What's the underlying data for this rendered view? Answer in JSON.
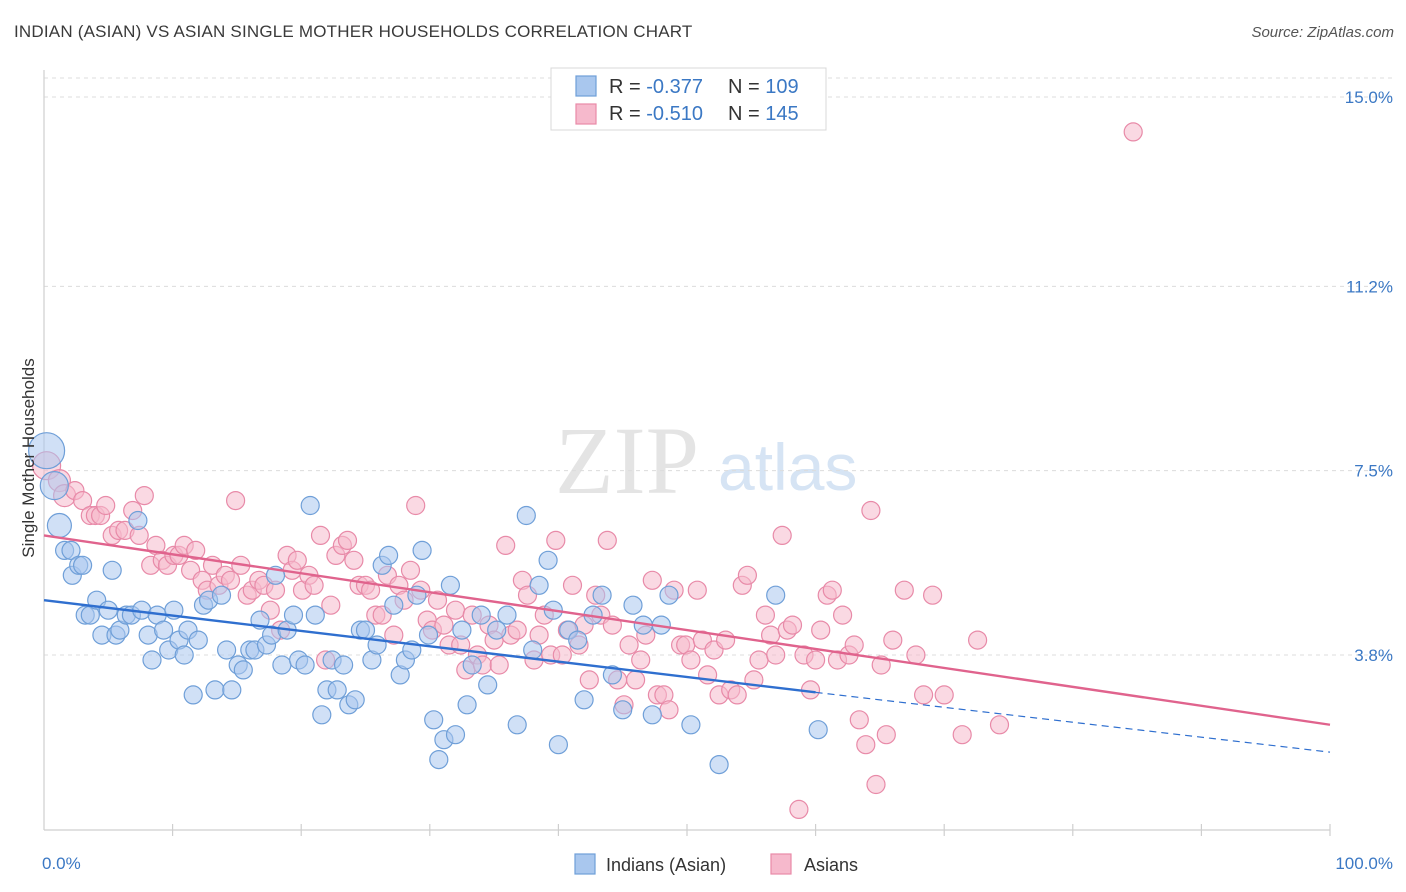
{
  "title": "INDIAN (ASIAN) VS ASIAN SINGLE MOTHER HOUSEHOLDS CORRELATION CHART",
  "source": "Source: ZipAtlas.com",
  "watermark": {
    "zip": "ZIP",
    "atlas": "atlas"
  },
  "colors": {
    "blue_fill": "#a9c7ee",
    "blue_stroke": "#6f9fd8",
    "blue_line": "#2f6fcf",
    "pink_fill": "#f6b9cc",
    "pink_stroke": "#e88aa8",
    "pink_line": "#e0638d",
    "tick_text": "#3b78c4",
    "grid": "#dcdcdc"
  },
  "legend_top": [
    {
      "r_label": "R = ",
      "r_value": "-0.377",
      "n_label": "N = ",
      "n_value": "109",
      "color": "blue"
    },
    {
      "r_label": "R = ",
      "r_value": "-0.510",
      "n_label": "N = ",
      "n_value": "145",
      "color": "pink"
    }
  ],
  "legend_bottom": [
    "Indians (Asian)",
    "Asians"
  ],
  "chart_data": {
    "type": "scatter",
    "title": "INDIAN (ASIAN) VS ASIAN SINGLE MOTHER HOUSEHOLDS CORRELATION CHART",
    "xlabel": "",
    "ylabel": "Single Mother Households",
    "x_tick_labels": [
      "0.0%",
      "100.0%"
    ],
    "y_tick_labels": [
      "3.8%",
      "7.5%",
      "11.2%",
      "15.0%"
    ],
    "y_ticks": [
      3.8,
      7.5,
      11.2,
      15.0
    ],
    "xlim": [
      0,
      100
    ],
    "ylim": [
      0.3,
      15.4
    ],
    "grid": true,
    "legend_position": "top-center",
    "series": [
      {
        "name": "Indians (Asian)",
        "color": "blue",
        "r": -0.377,
        "n": 109,
        "trend": {
          "x": [
            0,
            60
          ],
          "y": [
            4.9,
            3.05
          ],
          "dashed_to": [
            100,
            1.85
          ]
        },
        "points": [
          [
            0.2,
            7.9
          ],
          [
            0.8,
            7.2
          ],
          [
            1.2,
            6.4
          ],
          [
            1.6,
            5.9
          ],
          [
            2.1,
            5.9
          ],
          [
            2.2,
            5.4
          ],
          [
            2.7,
            5.6
          ],
          [
            3.0,
            5.6
          ],
          [
            3.2,
            4.6
          ],
          [
            3.6,
            4.6
          ],
          [
            4.1,
            4.9
          ],
          [
            4.5,
            4.2
          ],
          [
            5.0,
            4.7
          ],
          [
            5.3,
            5.5
          ],
          [
            5.6,
            4.2
          ],
          [
            5.9,
            4.3
          ],
          [
            6.4,
            4.6
          ],
          [
            6.8,
            4.6
          ],
          [
            7.3,
            6.5
          ],
          [
            7.6,
            4.7
          ],
          [
            8.1,
            4.2
          ],
          [
            8.4,
            3.7
          ],
          [
            8.8,
            4.6
          ],
          [
            9.3,
            4.3
          ],
          [
            9.7,
            3.9
          ],
          [
            10.1,
            4.7
          ],
          [
            10.5,
            4.1
          ],
          [
            10.9,
            3.8
          ],
          [
            11.2,
            4.3
          ],
          [
            11.6,
            3.0
          ],
          [
            12.0,
            4.1
          ],
          [
            12.4,
            4.8
          ],
          [
            12.8,
            4.9
          ],
          [
            13.3,
            3.1
          ],
          [
            13.8,
            5.0
          ],
          [
            14.2,
            3.9
          ],
          [
            14.6,
            3.1
          ],
          [
            15.1,
            3.6
          ],
          [
            15.5,
            3.5
          ],
          [
            16.0,
            3.9
          ],
          [
            16.4,
            3.9
          ],
          [
            16.8,
            4.5
          ],
          [
            17.3,
            4.0
          ],
          [
            17.7,
            4.2
          ],
          [
            18.0,
            5.4
          ],
          [
            18.5,
            3.6
          ],
          [
            18.9,
            4.3
          ],
          [
            19.4,
            4.6
          ],
          [
            19.8,
            3.7
          ],
          [
            20.3,
            3.6
          ],
          [
            20.7,
            6.8
          ],
          [
            21.1,
            4.6
          ],
          [
            21.6,
            2.6
          ],
          [
            22.0,
            3.1
          ],
          [
            22.4,
            3.7
          ],
          [
            22.8,
            3.1
          ],
          [
            23.3,
            3.6
          ],
          [
            23.7,
            2.8
          ],
          [
            24.2,
            2.9
          ],
          [
            24.6,
            4.3
          ],
          [
            25.0,
            4.3
          ],
          [
            25.5,
            3.7
          ],
          [
            25.9,
            4.0
          ],
          [
            26.3,
            5.6
          ],
          [
            26.8,
            5.8
          ],
          [
            27.2,
            4.8
          ],
          [
            27.7,
            3.4
          ],
          [
            28.1,
            3.7
          ],
          [
            28.6,
            3.9
          ],
          [
            29.0,
            5.0
          ],
          [
            29.4,
            5.9
          ],
          [
            29.9,
            4.2
          ],
          [
            30.3,
            2.5
          ],
          [
            30.7,
            1.7
          ],
          [
            31.1,
            2.1
          ],
          [
            31.6,
            5.2
          ],
          [
            32.0,
            2.2
          ],
          [
            32.5,
            4.3
          ],
          [
            32.9,
            2.8
          ],
          [
            33.3,
            3.6
          ],
          [
            34.0,
            4.6
          ],
          [
            34.5,
            3.2
          ],
          [
            35.2,
            4.3
          ],
          [
            36.0,
            4.6
          ],
          [
            36.8,
            2.4
          ],
          [
            37.5,
            6.6
          ],
          [
            38.0,
            3.9
          ],
          [
            38.5,
            5.2
          ],
          [
            39.2,
            5.7
          ],
          [
            39.6,
            4.7
          ],
          [
            40.0,
            2.0
          ],
          [
            40.8,
            4.3
          ],
          [
            41.5,
            4.1
          ],
          [
            42.0,
            2.9
          ],
          [
            42.7,
            4.6
          ],
          [
            43.4,
            5.0
          ],
          [
            44.2,
            3.4
          ],
          [
            45.0,
            2.7
          ],
          [
            45.8,
            4.8
          ],
          [
            46.6,
            4.4
          ],
          [
            47.3,
            2.6
          ],
          [
            48.0,
            4.4
          ],
          [
            48.6,
            5.0
          ],
          [
            50.3,
            2.4
          ],
          [
            52.5,
            1.6
          ],
          [
            56.9,
            5.0
          ],
          [
            60.2,
            2.3
          ]
        ]
      },
      {
        "name": "Asians",
        "color": "pink",
        "r": -0.51,
        "n": 145,
        "trend": {
          "x": [
            0,
            100
          ],
          "y": [
            6.2,
            2.4
          ]
        },
        "points": [
          [
            0.2,
            7.6
          ],
          [
            1.2,
            7.3
          ],
          [
            1.6,
            7.0
          ],
          [
            2.4,
            7.1
          ],
          [
            3.0,
            6.9
          ],
          [
            3.6,
            6.6
          ],
          [
            4.0,
            6.6
          ],
          [
            4.4,
            6.6
          ],
          [
            4.8,
            6.8
          ],
          [
            5.3,
            6.2
          ],
          [
            5.8,
            6.3
          ],
          [
            6.3,
            6.3
          ],
          [
            6.9,
            6.7
          ],
          [
            7.4,
            6.2
          ],
          [
            7.8,
            7.0
          ],
          [
            8.3,
            5.6
          ],
          [
            8.7,
            6.0
          ],
          [
            9.2,
            5.7
          ],
          [
            9.6,
            5.6
          ],
          [
            10.1,
            5.8
          ],
          [
            10.5,
            5.8
          ],
          [
            10.9,
            6.0
          ],
          [
            11.4,
            5.5
          ],
          [
            11.8,
            5.9
          ],
          [
            12.3,
            5.3
          ],
          [
            12.7,
            5.1
          ],
          [
            13.1,
            5.6
          ],
          [
            13.6,
            5.2
          ],
          [
            14.1,
            5.4
          ],
          [
            14.5,
            5.3
          ],
          [
            14.9,
            6.9
          ],
          [
            15.3,
            5.6
          ],
          [
            15.8,
            5.0
          ],
          [
            16.2,
            5.1
          ],
          [
            16.7,
            5.3
          ],
          [
            17.1,
            5.2
          ],
          [
            17.6,
            4.7
          ],
          [
            18.0,
            5.1
          ],
          [
            18.4,
            4.3
          ],
          [
            18.9,
            5.8
          ],
          [
            19.3,
            5.5
          ],
          [
            19.7,
            5.7
          ],
          [
            20.1,
            5.1
          ],
          [
            20.6,
            5.4
          ],
          [
            21.0,
            5.2
          ],
          [
            21.5,
            6.2
          ],
          [
            21.9,
            3.7
          ],
          [
            22.3,
            4.8
          ],
          [
            22.7,
            5.8
          ],
          [
            23.2,
            6.0
          ],
          [
            23.6,
            6.1
          ],
          [
            24.1,
            5.7
          ],
          [
            24.5,
            5.2
          ],
          [
            25.0,
            5.2
          ],
          [
            25.4,
            5.1
          ],
          [
            25.8,
            4.6
          ],
          [
            26.3,
            4.6
          ],
          [
            26.7,
            5.4
          ],
          [
            27.2,
            4.2
          ],
          [
            27.6,
            5.2
          ],
          [
            28.0,
            4.9
          ],
          [
            28.5,
            5.5
          ],
          [
            28.9,
            6.8
          ],
          [
            29.3,
            5.1
          ],
          [
            29.8,
            4.5
          ],
          [
            30.2,
            4.3
          ],
          [
            30.6,
            4.9
          ],
          [
            31.1,
            4.4
          ],
          [
            31.5,
            4.0
          ],
          [
            32.0,
            4.7
          ],
          [
            32.4,
            4.0
          ],
          [
            32.8,
            3.5
          ],
          [
            33.3,
            4.6
          ],
          [
            33.7,
            3.8
          ],
          [
            34.1,
            3.6
          ],
          [
            34.6,
            4.4
          ],
          [
            35.0,
            4.1
          ],
          [
            35.4,
            3.6
          ],
          [
            35.9,
            6.0
          ],
          [
            36.3,
            4.2
          ],
          [
            36.8,
            4.3
          ],
          [
            37.2,
            5.3
          ],
          [
            37.6,
            5.0
          ],
          [
            38.1,
            3.7
          ],
          [
            38.5,
            4.2
          ],
          [
            38.9,
            4.6
          ],
          [
            39.4,
            3.8
          ],
          [
            39.8,
            6.1
          ],
          [
            40.3,
            3.8
          ],
          [
            40.7,
            4.3
          ],
          [
            41.1,
            5.2
          ],
          [
            41.6,
            4.0
          ],
          [
            42.0,
            4.4
          ],
          [
            42.4,
            3.3
          ],
          [
            42.9,
            5.0
          ],
          [
            43.3,
            4.6
          ],
          [
            43.8,
            6.1
          ],
          [
            44.2,
            4.4
          ],
          [
            44.6,
            3.3
          ],
          [
            45.1,
            2.8
          ],
          [
            45.5,
            4.0
          ],
          [
            46.0,
            3.3
          ],
          [
            46.4,
            3.7
          ],
          [
            46.8,
            4.2
          ],
          [
            47.3,
            5.3
          ],
          [
            47.7,
            3.0
          ],
          [
            48.2,
            3.0
          ],
          [
            48.6,
            2.7
          ],
          [
            49.0,
            5.1
          ],
          [
            49.5,
            4.0
          ],
          [
            49.9,
            4.0
          ],
          [
            50.3,
            3.7
          ],
          [
            50.8,
            5.1
          ],
          [
            51.2,
            4.1
          ],
          [
            51.6,
            3.4
          ],
          [
            52.1,
            3.9
          ],
          [
            52.5,
            3.0
          ],
          [
            53.0,
            4.1
          ],
          [
            53.4,
            3.1
          ],
          [
            53.9,
            3.0
          ],
          [
            54.3,
            5.2
          ],
          [
            54.7,
            5.4
          ],
          [
            55.2,
            3.3
          ],
          [
            55.6,
            3.7
          ],
          [
            56.1,
            4.6
          ],
          [
            56.5,
            4.2
          ],
          [
            56.9,
            3.8
          ],
          [
            57.4,
            6.2
          ],
          [
            57.8,
            4.3
          ],
          [
            58.2,
            4.4
          ],
          [
            58.7,
            0.7
          ],
          [
            59.1,
            3.8
          ],
          [
            59.6,
            3.1
          ],
          [
            60.0,
            3.7
          ],
          [
            60.4,
            4.3
          ],
          [
            60.9,
            5.0
          ],
          [
            61.3,
            5.1
          ],
          [
            61.7,
            3.7
          ],
          [
            62.1,
            4.6
          ],
          [
            62.6,
            3.8
          ],
          [
            63.0,
            4.0
          ],
          [
            63.4,
            2.5
          ],
          [
            63.9,
            2.0
          ],
          [
            64.3,
            6.7
          ],
          [
            64.7,
            1.2
          ],
          [
            65.1,
            3.6
          ],
          [
            65.5,
            2.2
          ],
          [
            66.0,
            4.1
          ],
          [
            66.9,
            5.1
          ],
          [
            67.8,
            3.8
          ],
          [
            68.4,
            3.0
          ],
          [
            69.1,
            5.0
          ],
          [
            70.0,
            3.0
          ],
          [
            71.4,
            2.2
          ],
          [
            72.6,
            4.1
          ],
          [
            74.3,
            2.4
          ],
          [
            84.7,
            14.3
          ]
        ]
      }
    ]
  }
}
